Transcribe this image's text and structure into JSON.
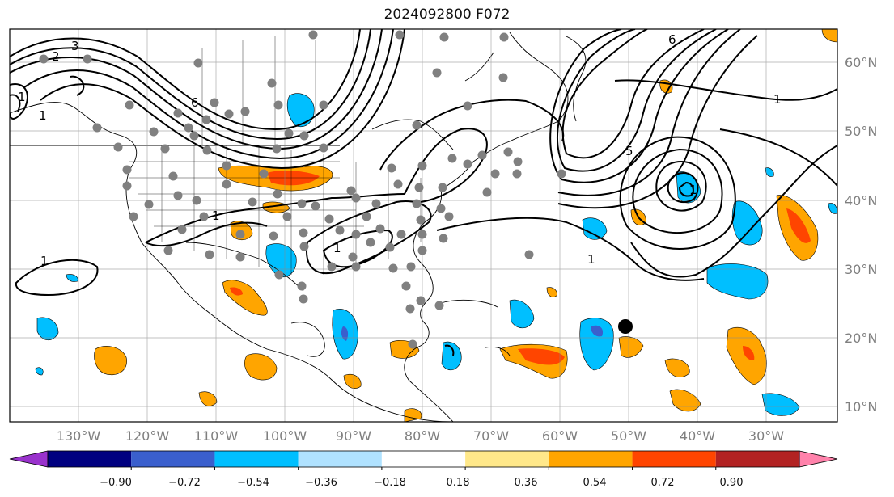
{
  "title": "2024092800 F072",
  "map": {
    "lon_range": [
      -140,
      -18
    ],
    "lat_range": [
      8,
      65
    ],
    "lon_ticks": [
      "130°W",
      "120°W",
      "110°W",
      "100°W",
      "90°W",
      "80°W",
      "70°W",
      "60°W",
      "50°W",
      "40°W",
      "30°W"
    ],
    "lat_ticks": [
      "10°N",
      "20°N",
      "30°N",
      "40°N",
      "50°N",
      "60°N"
    ],
    "contour_labels": [
      "1",
      "2",
      "3",
      "6",
      "1",
      "1",
      "1",
      "1",
      "1",
      "1",
      "6",
      "5",
      "1"
    ],
    "storm_marker": "black-dot",
    "station_color": "#808080",
    "contour_color": "#000000"
  },
  "colorbar": {
    "ticks": [
      "−0.90",
      "−0.72",
      "−0.54",
      "−0.36",
      "−0.18",
      "0.18",
      "0.36",
      "0.54",
      "0.72",
      "0.90"
    ],
    "colors": [
      "#9932cc",
      "#000080",
      "#3a5fcd",
      "#00bfff",
      "#b0e2ff",
      "#ffffff",
      "#ffe88a",
      "#ffa500",
      "#ff4500",
      "#b22222",
      "#ff82ab"
    ]
  }
}
